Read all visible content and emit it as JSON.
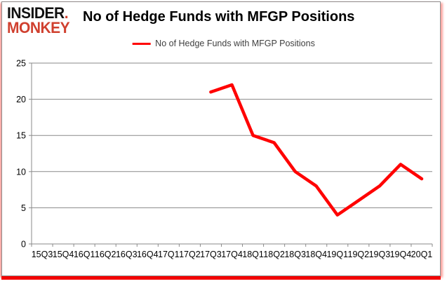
{
  "brand": {
    "line1": "INSIDER",
    "line2": "MONKEY",
    "dot": ".",
    "brand_red": "#d0402f",
    "brand_black": "#111111"
  },
  "header": {
    "title": "No of Hedge Funds with MFGP Positions"
  },
  "legend": {
    "label": "No of Hedge Funds with MFGP Positions",
    "swatch_color": "#ff0000"
  },
  "chart_data": {
    "type": "line",
    "title": "No of Hedge Funds with MFGP Positions",
    "xlabel": "",
    "ylabel": "",
    "categories": [
      "15Q3",
      "15Q4",
      "16Q1",
      "16Q2",
      "16Q3",
      "16Q4",
      "17Q1",
      "17Q2",
      "17Q3",
      "17Q4",
      "18Q1",
      "18Q2",
      "18Q3",
      "18Q4",
      "19Q1",
      "19Q2",
      "19Q3",
      "19Q4",
      "20Q1"
    ],
    "series": [
      {
        "name": "No of Hedge Funds with MFGP Positions",
        "color": "#ff0000",
        "values": [
          null,
          null,
          null,
          null,
          null,
          null,
          null,
          null,
          21,
          22,
          15,
          14,
          10,
          8,
          4,
          6,
          8,
          11,
          9
        ]
      }
    ],
    "ylim": [
      0,
      25
    ],
    "yticks": [
      0,
      5,
      10,
      15,
      20,
      25
    ],
    "grid": "horizontal",
    "grid_color": "#8a8a8a",
    "axis_color": "#8a8a8a",
    "tick_label_color": "#000000",
    "legend_position": "top-center"
  }
}
